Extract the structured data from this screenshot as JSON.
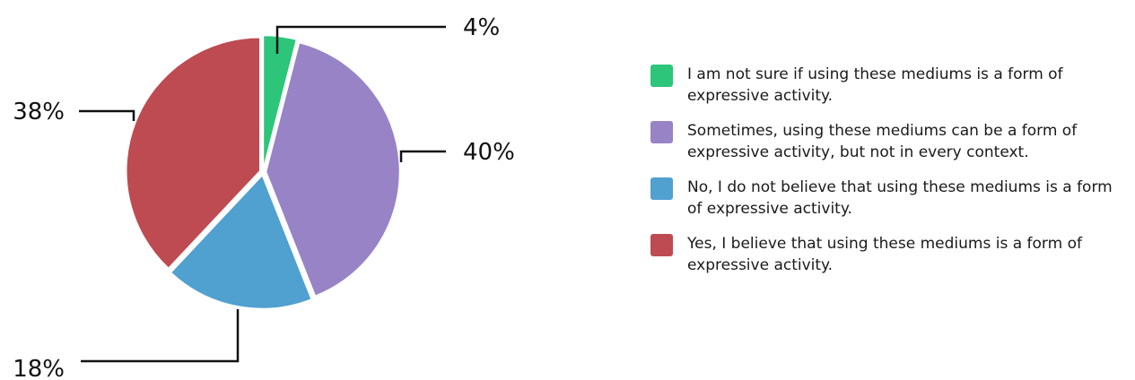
{
  "chart_data": {
    "type": "pie",
    "start_angle_deg": 0,
    "direction": "clockwise",
    "slices": [
      {
        "label": "I am not sure if using these mediums is a form of expressive activity.",
        "value": 4,
        "display": "4%",
        "color": "#2dc57a"
      },
      {
        "label": "Sometimes, using these mediums can be a form of expressive activity, but not in every context.",
        "value": 40,
        "display": "40%",
        "color": "#9883c6"
      },
      {
        "label": "No, I do not believe that using these mediums is a form of expressive activity.",
        "value": 18,
        "display": "18%",
        "color": "#50a0d0"
      },
      {
        "label": "Yes, I believe that using these mediums is a form of expressive activity.",
        "value": 38,
        "display": "38%",
        "color": "#be4b52"
      }
    ],
    "legend_position": "right"
  }
}
